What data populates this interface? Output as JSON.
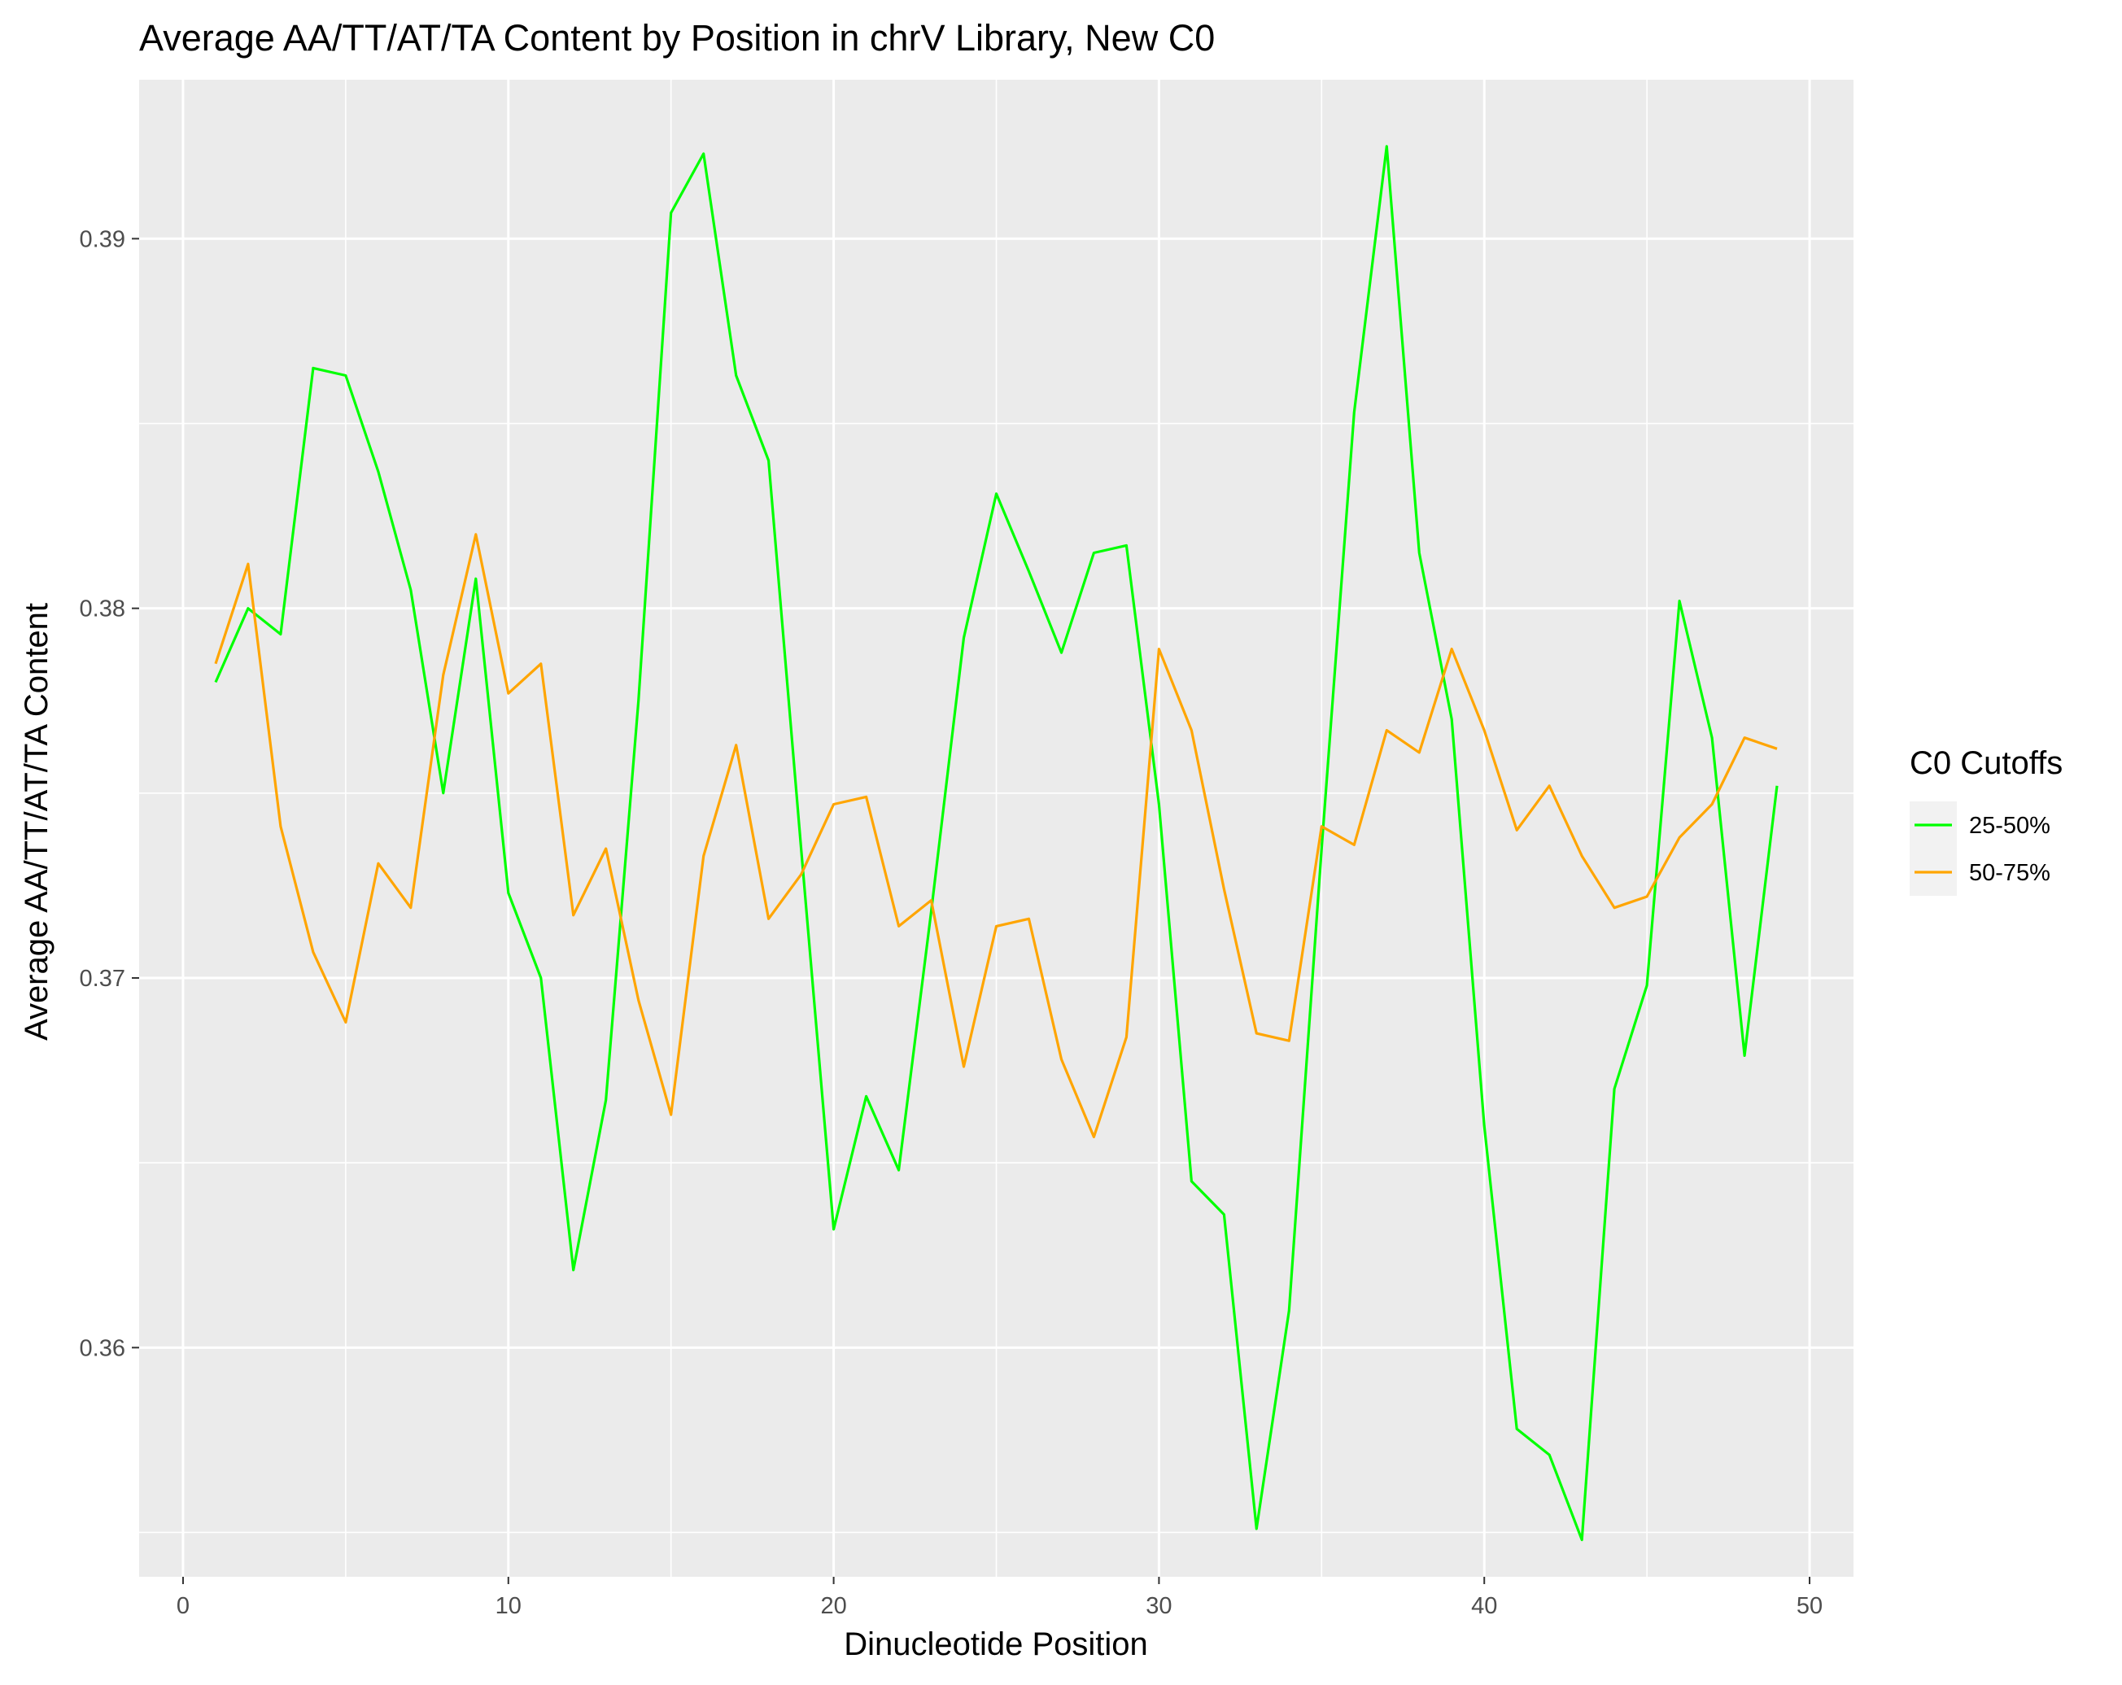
{
  "chart_data": {
    "type": "line",
    "title": "Average AA/TT/AT/TA Content by Position in chrV Library, New C0",
    "xlabel": "Dinucleotide Position",
    "ylabel": "Average AA/TT/AT/TA Content",
    "xlim": [
      -1.35,
      51.35
    ],
    "ylim": [
      0.3538,
      0.3943
    ],
    "x_ticks": [
      0,
      10,
      20,
      30,
      40,
      50
    ],
    "x_tick_labels": [
      "0",
      "10",
      "20",
      "30",
      "40",
      "50"
    ],
    "y_ticks": [
      0.36,
      0.37,
      0.38,
      0.39
    ],
    "y_tick_labels": [
      "0.36",
      "0.37",
      "0.38",
      "0.39"
    ],
    "grid": true,
    "legend_title": "C0 Cutoffs",
    "legend_position": "right",
    "x": [
      1,
      2,
      3,
      4,
      5,
      6,
      7,
      8,
      9,
      10,
      11,
      12,
      13,
      14,
      15,
      16,
      17,
      18,
      19,
      20,
      21,
      22,
      23,
      24,
      25,
      26,
      27,
      28,
      29,
      30,
      31,
      32,
      33,
      34,
      35,
      36,
      37,
      38,
      39,
      40,
      41,
      42,
      43,
      44,
      45,
      46,
      47,
      48,
      49
    ],
    "series": [
      {
        "name": "25-50%",
        "color": "#00ff00",
        "values": [
          0.378,
          0.38,
          0.3793,
          0.3865,
          0.3863,
          0.3837,
          0.3805,
          0.375,
          0.3808,
          0.3723,
          0.37,
          0.3621,
          0.3667,
          0.3775,
          0.3907,
          0.3923,
          0.3863,
          0.384,
          0.3735,
          0.3632,
          0.3668,
          0.3648,
          0.3718,
          0.3792,
          0.3831,
          0.381,
          0.3788,
          0.3815,
          0.3817,
          0.3747,
          0.3645,
          0.3636,
          0.3551,
          0.361,
          0.3735,
          0.3853,
          0.3925,
          0.3815,
          0.377,
          0.366,
          0.3578,
          0.3571,
          0.3548,
          0.367,
          0.3698,
          0.3802,
          0.3765,
          0.3679,
          0.3752
        ]
      },
      {
        "name": "50-75%",
        "color": "#ffa500",
        "values": [
          0.3785,
          0.3812,
          0.3741,
          0.3707,
          0.3688,
          0.3731,
          0.3719,
          0.3782,
          0.382,
          0.3777,
          0.3785,
          0.3717,
          0.3735,
          0.3694,
          0.3663,
          0.3733,
          0.3763,
          0.3716,
          0.3728,
          0.3747,
          0.3749,
          0.3714,
          0.3721,
          0.3676,
          0.3714,
          0.3716,
          0.3678,
          0.3657,
          0.3684,
          0.3789,
          0.3767,
          0.3724,
          0.3685,
          0.3683,
          0.3741,
          0.3736,
          0.3767,
          0.3761,
          0.3789,
          0.3767,
          0.374,
          0.3752,
          0.3733,
          0.3719,
          0.3722,
          0.3738,
          0.3747,
          0.3765,
          0.3762
        ]
      }
    ]
  }
}
